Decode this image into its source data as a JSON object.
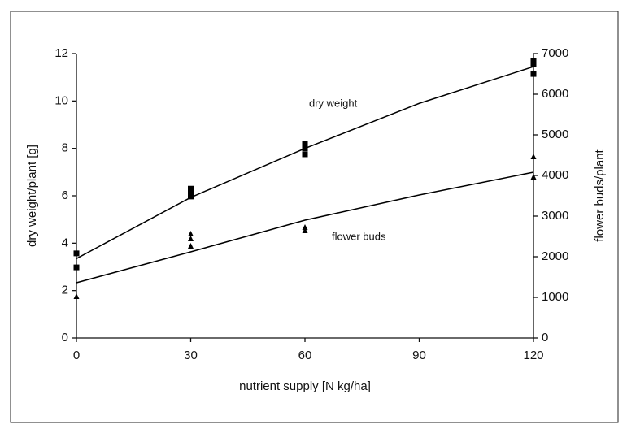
{
  "chart_data": {
    "type": "scatter",
    "x_label": "nutrient supply [N kg/ha]",
    "y_label": "dry weight/plant [g]",
    "y2_label": "flower buds/plant",
    "xlim": [
      0,
      120
    ],
    "xticks": [
      0,
      30,
      60,
      90,
      120
    ],
    "ylim": [
      0,
      12
    ],
    "yticks": [
      0,
      2,
      4,
      6,
      8,
      10,
      12
    ],
    "y2lim": [
      0,
      7000
    ],
    "y2ticks": [
      0,
      1000,
      2000,
      3000,
      4000,
      5000,
      6000,
      7000
    ],
    "grid": false,
    "series": [
      {
        "name": "dry weight",
        "color": "#000000",
        "marker": "square",
        "x": [
          0,
          0,
          30,
          30,
          30,
          60,
          60,
          60,
          120,
          120,
          120
        ],
        "values": [
          3.57,
          2.98,
          6.3,
          6.1,
          5.97,
          8.2,
          8.0,
          7.75,
          11.7,
          11.55,
          11.14
        ],
        "fit": {
          "x": [
            0,
            30,
            60,
            90,
            120
          ],
          "values": [
            3.35,
            5.93,
            8.0,
            9.9,
            11.45
          ]
        }
      },
      {
        "name": "flower buds",
        "color": "#000000",
        "marker": "triangle",
        "axis": "y2",
        "x": [
          0,
          30,
          30,
          30,
          60,
          60,
          120,
          120
        ],
        "values": [
          1020,
          2560,
          2440,
          2260,
          2720,
          2640,
          4460,
          3960
        ],
        "fit": {
          "x": [
            0,
            30,
            60,
            90,
            120
          ],
          "values": [
            1360,
            2120,
            2900,
            3520,
            4080
          ]
        }
      }
    ]
  }
}
